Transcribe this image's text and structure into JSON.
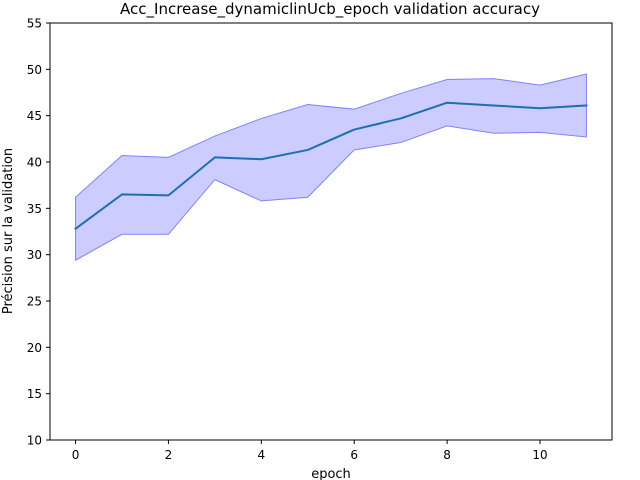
{
  "chart_data": {
    "type": "line",
    "title": "Acc_Increase_dynamiclinUcb_epoch validation accuracy",
    "xlabel": "epoch",
    "ylabel": "Précision sur la validation",
    "xlim": [
      -0.55,
      11.55
    ],
    "ylim": [
      10,
      55
    ],
    "x_ticks": [
      0,
      2,
      4,
      6,
      8,
      10
    ],
    "y_ticks": [
      10,
      15,
      20,
      25,
      30,
      35,
      40,
      45,
      50,
      55
    ],
    "grid": false,
    "x": [
      0,
      1,
      2,
      3,
      4,
      5,
      6,
      7,
      8,
      9,
      10,
      11
    ],
    "series": [
      {
        "values": [
          32.8,
          36.5,
          36.4,
          40.5,
          40.3,
          41.3,
          43.5,
          44.7,
          46.4,
          46.1,
          45.8,
          46.1
        ],
        "lower": [
          29.4,
          32.2,
          32.2,
          38.1,
          35.8,
          36.2,
          41.3,
          42.1,
          43.9,
          43.1,
          43.2,
          42.7
        ],
        "upper": [
          36.2,
          40.7,
          40.5,
          42.8,
          44.7,
          46.2,
          45.7,
          47.4,
          48.9,
          49.0,
          48.3,
          49.5
        ]
      }
    ],
    "colors": {
      "line": "#1f6fb4",
      "band_fill": "#0000ff",
      "band_fill_opacity": 0.2,
      "band_edge": "#8080ff"
    }
  }
}
